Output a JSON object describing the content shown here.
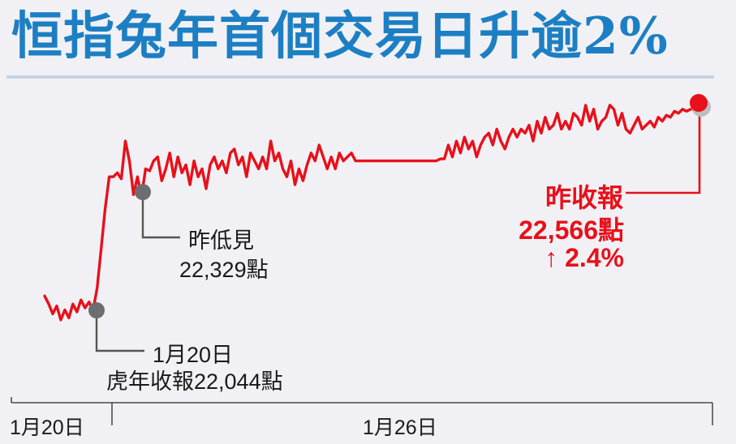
{
  "title": "恒指兔年首個交易日升逾2%",
  "colors": {
    "title": "#1d7fc3",
    "line": "#e8101a",
    "marker_gray": "#6e6e72",
    "rule": "#c5d4e6",
    "background": "#f1f1f5"
  },
  "annotations": {
    "low": {
      "line1": "昨低見",
      "line2": "22,329點"
    },
    "prev_close": {
      "line1": "1月20日",
      "line2": "虎年收報22,044點"
    },
    "close": {
      "line1": "昨收報",
      "line2": "22,566點",
      "line3": "↑ 2.4%"
    }
  },
  "chart_data": {
    "type": "line",
    "title": "恒指兔年首個交易日升逾2%",
    "x_tick_labels": [
      "1月20日",
      "1月26日"
    ],
    "y_approx_range": [
      21950,
      22600
    ],
    "grid": false,
    "series": [
      {
        "color": "#e8101a",
        "values": [
          22080,
          22060,
          22035,
          22055,
          22020,
          22045,
          22025,
          22060,
          22040,
          22070,
          22050,
          22065,
          22044,
          22100,
          22200,
          22300,
          22380,
          22380,
          22390,
          22375,
          22470,
          22420,
          22335,
          22380,
          22330,
          22400,
          22395,
          22420,
          22430,
          22370,
          22400,
          22440,
          22380,
          22430,
          22390,
          22410,
          22360,
          22420,
          22380,
          22400,
          22350,
          22410,
          22430,
          22400,
          22420,
          22390,
          22440,
          22450,
          22410,
          22430,
          22380,
          22440,
          22420,
          22400,
          22430,
          22400,
          22470,
          22420,
          22440,
          22400,
          22380,
          22420,
          22360,
          22400,
          22370,
          22410,
          22440,
          22420,
          22460,
          22430,
          22400,
          22430,
          22400,
          22440,
          22420,
          22430,
          22440,
          22420,
          22420,
          22420,
          22420,
          22420,
          22420,
          22420,
          22420,
          22420,
          22420,
          22420,
          22420,
          22420,
          22420,
          22420,
          22420,
          22420,
          22420,
          22420,
          22420,
          22420,
          22425,
          22425,
          22460,
          22430,
          22470,
          22440,
          22480,
          22450,
          22470,
          22430,
          22460,
          22480,
          22490,
          22460,
          22500,
          22470,
          22450,
          22480,
          22500,
          22480,
          22500,
          22490,
          22510,
          22470,
          22520,
          22490,
          22530,
          22500,
          22510,
          22540,
          22500,
          22520,
          22500,
          22540,
          22530,
          22510,
          22560,
          22520,
          22550,
          22500,
          22520,
          22530,
          22560,
          22550,
          22510,
          22540,
          22500,
          22490,
          22510,
          22530,
          22500,
          22510,
          22520,
          22505,
          22530,
          22520,
          22535,
          22530,
          22545,
          22540,
          22550,
          22545,
          22550,
          22550,
          22566
        ]
      }
    ],
    "points": [
      {
        "label": "1月20日 虎年收報",
        "value": 22044
      },
      {
        "label": "昨低見",
        "value": 22329
      },
      {
        "label": "昨收報",
        "value": 22566,
        "change_pct": 2.4
      }
    ]
  }
}
